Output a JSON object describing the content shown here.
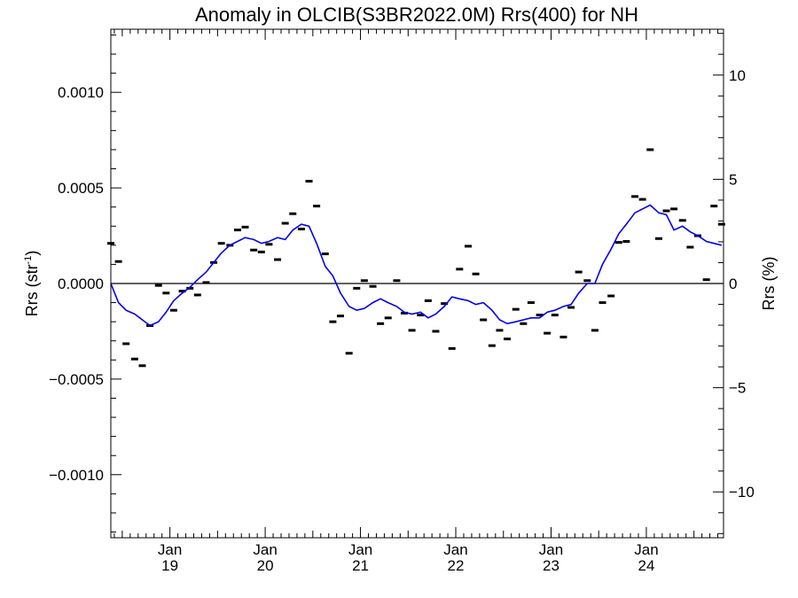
{
  "chart_data": {
    "type": "scatter",
    "title": "Anomaly in OLCIB(S3BR2022.0M) Rrs(400) for NH",
    "ylabel_left": {
      "base": "Rrs (str",
      "sup": "-1",
      "close": ")"
    },
    "ylabel_right": "Rrs (%)",
    "xlim": [
      2018.38,
      2024.81
    ],
    "ylim": [
      -0.00133,
      0.00133
    ],
    "ylim_right_pct": [
      -12.2,
      12.2
    ],
    "left_ticks": [
      {
        "value": 0.001,
        "label": "0.0010"
      },
      {
        "value": 0.0005,
        "label": "0.0005"
      },
      {
        "value": 0.0,
        "label": "0.0000"
      },
      {
        "value": -0.0005,
        "label": "−0.0005"
      },
      {
        "value": -0.001,
        "label": "−0.0010"
      }
    ],
    "right_ticks": [
      {
        "value": 10,
        "label": "10"
      },
      {
        "value": 5,
        "label": "5"
      },
      {
        "value": 0,
        "label": "0"
      },
      {
        "value": -5,
        "label": "−5"
      },
      {
        "value": -10,
        "label": "−10"
      }
    ],
    "x_ticks": [
      {
        "value": 2019.0,
        "month": "Jan",
        "year": "19"
      },
      {
        "value": 2020.0,
        "month": "Jan",
        "year": "20"
      },
      {
        "value": 2021.0,
        "month": "Jan",
        "year": "21"
      },
      {
        "value": 2022.0,
        "month": "Jan",
        "year": "22"
      },
      {
        "value": 2023.0,
        "month": "Jan",
        "year": "23"
      },
      {
        "value": 2024.0,
        "month": "Jan",
        "year": "24"
      }
    ],
    "zero_line": true,
    "series": [
      {
        "kind": "points",
        "color": "#000000",
        "x": [
          2018.38,
          2018.46,
          2018.54,
          2018.63,
          2018.71,
          2018.79,
          2018.88,
          2018.96,
          2019.04,
          2019.13,
          2019.21,
          2019.29,
          2019.38,
          2019.46,
          2019.54,
          2019.63,
          2019.71,
          2019.79,
          2019.88,
          2019.96,
          2020.04,
          2020.13,
          2020.21,
          2020.29,
          2020.38,
          2020.46,
          2020.54,
          2020.63,
          2020.71,
          2020.79,
          2020.88,
          2020.96,
          2021.04,
          2021.13,
          2021.21,
          2021.29,
          2021.38,
          2021.46,
          2021.54,
          2021.63,
          2021.71,
          2021.79,
          2021.88,
          2021.96,
          2022.04,
          2022.13,
          2022.21,
          2022.29,
          2022.38,
          2022.46,
          2022.54,
          2022.63,
          2022.71,
          2022.79,
          2022.88,
          2022.96,
          2023.04,
          2023.13,
          2023.21,
          2023.29,
          2023.38,
          2023.46,
          2023.54,
          2023.63,
          2023.71,
          2023.79,
          2023.88,
          2023.96,
          2024.04,
          2024.13,
          2024.21,
          2024.29,
          2024.38,
          2024.46,
          2024.54,
          2024.63,
          2024.71,
          2024.79
        ],
        "y": [
          0.00021,
          0.000115,
          -0.000315,
          -0.000395,
          -0.00043,
          -0.00022,
          -1e-05,
          -5e-05,
          -0.00014,
          -4e-05,
          -2.5e-05,
          -6e-05,
          5e-06,
          0.00011,
          0.00021,
          0.0002,
          0.00028,
          0.000295,
          0.000175,
          0.000165,
          0.000205,
          0.000125,
          0.000315,
          0.000365,
          0.000285,
          0.000535,
          0.000405,
          0.000155,
          -0.0002,
          -0.00017,
          -0.000365,
          -2.5e-05,
          1.5e-05,
          -1.5e-05,
          -0.00021,
          -0.00018,
          1.5e-05,
          -0.000155,
          -0.000245,
          -0.000165,
          -9e-05,
          -0.00025,
          -0.000105,
          -0.00034,
          7.5e-05,
          0.000195,
          5e-05,
          -0.00019,
          -0.000325,
          -0.000245,
          -0.00029,
          -0.000135,
          -0.00021,
          -0.0001,
          -0.000165,
          -0.00026,
          -0.000165,
          -0.00028,
          -0.000125,
          6e-05,
          1.5e-05,
          -0.000245,
          -0.0001,
          -6.5e-05,
          0.000215,
          0.00022,
          0.000455,
          0.00044,
          0.0007,
          0.000235,
          0.00038,
          0.00039,
          0.00033,
          0.00019,
          0.00025,
          2e-05,
          0.000405,
          0.00031
        ]
      },
      {
        "kind": "line",
        "color": "#0000ee",
        "x": [
          2018.38,
          2018.46,
          2018.54,
          2018.63,
          2018.71,
          2018.79,
          2018.88,
          2018.96,
          2019.04,
          2019.13,
          2019.21,
          2019.29,
          2019.38,
          2019.46,
          2019.54,
          2019.63,
          2019.71,
          2019.79,
          2019.88,
          2019.96,
          2020.04,
          2020.13,
          2020.21,
          2020.29,
          2020.38,
          2020.46,
          2020.54,
          2020.63,
          2020.71,
          2020.79,
          2020.88,
          2020.96,
          2021.04,
          2021.13,
          2021.21,
          2021.29,
          2021.38,
          2021.46,
          2021.54,
          2021.63,
          2021.71,
          2021.79,
          2021.88,
          2021.96,
          2022.04,
          2022.13,
          2022.21,
          2022.29,
          2022.38,
          2022.46,
          2022.54,
          2022.63,
          2022.71,
          2022.79,
          2022.88,
          2022.96,
          2023.04,
          2023.13,
          2023.21,
          2023.29,
          2023.38,
          2023.46,
          2023.54,
          2023.63,
          2023.71,
          2023.79,
          2023.88,
          2023.96,
          2024.04,
          2024.13,
          2024.21,
          2024.29,
          2024.38,
          2024.46,
          2024.54,
          2024.63,
          2024.71,
          2024.79
        ],
        "y": [
          0.0,
          -0.0001,
          -0.00014,
          -0.00016,
          -0.00019,
          -0.00022,
          -0.0002,
          -0.00015,
          -9e-05,
          -5e-05,
          -2e-05,
          2e-05,
          6e-05,
          0.00011,
          0.00016,
          0.0002,
          0.00022,
          0.00024,
          0.00023,
          0.00021,
          0.00022,
          0.00024,
          0.00023,
          0.00028,
          0.00031,
          0.0003,
          0.00021,
          9e-05,
          4e-05,
          -5e-05,
          -0.00012,
          -0.00014,
          -0.00013,
          -0.0001,
          -8e-05,
          -0.0001,
          -0.00012,
          -0.00015,
          -0.00016,
          -0.00015,
          -0.00018,
          -0.00016,
          -0.00012,
          -7e-05,
          -8e-05,
          -9e-05,
          -0.00011,
          -0.0001,
          -0.00014,
          -0.00019,
          -0.00021,
          -0.0002,
          -0.00019,
          -0.00018,
          -0.00018,
          -0.00015,
          -0.00014,
          -0.00012,
          -0.00011,
          -5e-05,
          0.0,
          0.0,
          0.0001,
          0.00018,
          0.00026,
          0.00031,
          0.00037,
          0.00039,
          0.00041,
          0.00037,
          0.00036,
          0.00028,
          0.0003,
          0.00027,
          0.00025,
          0.00022,
          0.00021,
          0.0002
        ]
      }
    ]
  }
}
